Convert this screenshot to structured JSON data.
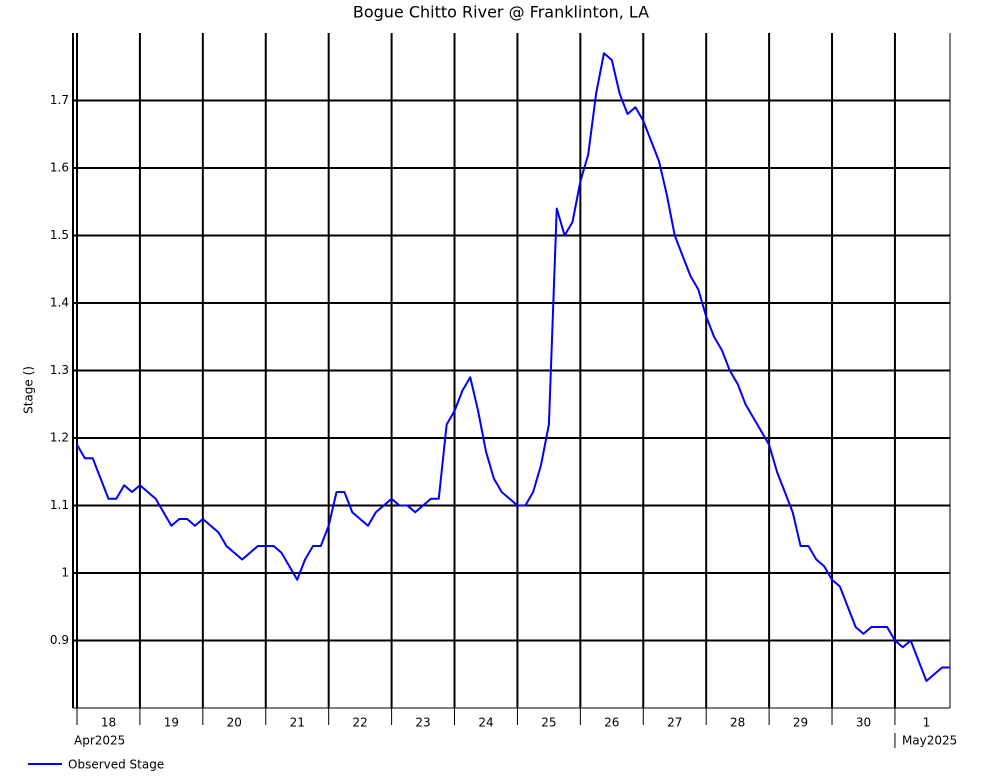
{
  "chart_data": {
    "type": "line",
    "title": "Bogue Chitto River @ Franklinton, LA",
    "y_label": "Stage ()",
    "x": [
      "2025-04-18T00:00",
      "2025-04-18T03:00",
      "2025-04-18T06:00",
      "2025-04-18T09:00",
      "2025-04-18T12:00",
      "2025-04-18T15:00",
      "2025-04-18T18:00",
      "2025-04-18T21:00",
      "2025-04-19T00:00",
      "2025-04-19T03:00",
      "2025-04-19T06:00",
      "2025-04-19T09:00",
      "2025-04-19T12:00",
      "2025-04-19T15:00",
      "2025-04-19T18:00",
      "2025-04-19T21:00",
      "2025-04-20T00:00",
      "2025-04-20T03:00",
      "2025-04-20T06:00",
      "2025-04-20T09:00",
      "2025-04-20T12:00",
      "2025-04-20T15:00",
      "2025-04-20T18:00",
      "2025-04-20T21:00",
      "2025-04-21T00:00",
      "2025-04-21T03:00",
      "2025-04-21T06:00",
      "2025-04-21T09:00",
      "2025-04-21T12:00",
      "2025-04-21T15:00",
      "2025-04-21T18:00",
      "2025-04-21T21:00",
      "2025-04-22T00:00",
      "2025-04-22T03:00",
      "2025-04-22T06:00",
      "2025-04-22T09:00",
      "2025-04-22T12:00",
      "2025-04-22T15:00",
      "2025-04-22T18:00",
      "2025-04-22T21:00",
      "2025-04-23T00:00",
      "2025-04-23T03:00",
      "2025-04-23T06:00",
      "2025-04-23T09:00",
      "2025-04-23T12:00",
      "2025-04-23T15:00",
      "2025-04-23T18:00",
      "2025-04-23T21:00",
      "2025-04-24T00:00",
      "2025-04-24T03:00",
      "2025-04-24T06:00",
      "2025-04-24T09:00",
      "2025-04-24T12:00",
      "2025-04-24T15:00",
      "2025-04-24T18:00",
      "2025-04-24T21:00",
      "2025-04-25T00:00",
      "2025-04-25T03:00",
      "2025-04-25T06:00",
      "2025-04-25T09:00",
      "2025-04-25T12:00",
      "2025-04-25T15:00",
      "2025-04-25T18:00",
      "2025-04-25T21:00",
      "2025-04-26T00:00",
      "2025-04-26T03:00",
      "2025-04-26T06:00",
      "2025-04-26T09:00",
      "2025-04-26T12:00",
      "2025-04-26T15:00",
      "2025-04-26T18:00",
      "2025-04-26T21:00",
      "2025-04-27T00:00",
      "2025-04-27T03:00",
      "2025-04-27T06:00",
      "2025-04-27T09:00",
      "2025-04-27T12:00",
      "2025-04-27T15:00",
      "2025-04-27T18:00",
      "2025-04-27T21:00",
      "2025-04-28T00:00",
      "2025-04-28T03:00",
      "2025-04-28T06:00",
      "2025-04-28T09:00",
      "2025-04-28T12:00",
      "2025-04-28T15:00",
      "2025-04-28T18:00",
      "2025-04-28T21:00",
      "2025-04-29T00:00",
      "2025-04-29T03:00",
      "2025-04-29T06:00",
      "2025-04-29T09:00",
      "2025-04-29T12:00",
      "2025-04-29T15:00",
      "2025-04-29T18:00",
      "2025-04-29T21:00",
      "2025-04-30T00:00",
      "2025-04-30T03:00",
      "2025-04-30T06:00",
      "2025-04-30T09:00",
      "2025-04-30T12:00",
      "2025-04-30T15:00",
      "2025-04-30T18:00",
      "2025-04-30T21:00",
      "2025-05-01T00:00",
      "2025-05-01T03:00",
      "2025-05-01T06:00",
      "2025-05-01T09:00",
      "2025-05-01T12:00",
      "2025-05-01T15:00",
      "2025-05-01T18:00",
      "2025-05-01T21:00"
    ],
    "series": [
      {
        "name": "Observed Stage",
        "color": "#0000ff",
        "values": [
          1.19,
          1.17,
          1.17,
          1.14,
          1.11,
          1.11,
          1.13,
          1.12,
          1.13,
          1.12,
          1.11,
          1.09,
          1.07,
          1.08,
          1.08,
          1.07,
          1.08,
          1.07,
          1.06,
          1.04,
          1.03,
          1.02,
          1.03,
          1.04,
          1.04,
          1.04,
          1.03,
          1.01,
          0.99,
          1.02,
          1.04,
          1.04,
          1.07,
          1.12,
          1.12,
          1.09,
          1.08,
          1.07,
          1.09,
          1.1,
          1.11,
          1.1,
          1.1,
          1.09,
          1.1,
          1.11,
          1.11,
          1.22,
          1.24,
          1.27,
          1.29,
          1.24,
          1.18,
          1.14,
          1.12,
          1.11,
          1.1,
          1.1,
          1.12,
          1.16,
          1.22,
          1.54,
          1.5,
          1.52,
          1.58,
          1.62,
          1.71,
          1.77,
          1.76,
          1.71,
          1.68,
          1.69,
          1.67,
          1.64,
          1.61,
          1.56,
          1.5,
          1.47,
          1.44,
          1.42,
          1.38,
          1.35,
          1.33,
          1.3,
          1.28,
          1.25,
          1.23,
          1.21,
          1.19,
          1.15,
          1.12,
          1.09,
          1.04,
          1.04,
          1.02,
          1.01,
          0.99,
          0.98,
          0.95,
          0.92,
          0.91,
          0.92,
          0.92,
          0.92,
          0.9,
          0.89,
          0.9,
          0.87,
          0.84,
          0.85,
          0.86,
          0.86
        ]
      }
    ],
    "xlim": [
      "2025-04-18T00:00",
      "2025-05-01T21:00"
    ],
    "xticks": [
      "2025-04-18T00:00",
      "2025-04-19T00:00",
      "2025-04-20T00:00",
      "2025-04-21T00:00",
      "2025-04-22T00:00",
      "2025-04-23T00:00",
      "2025-04-24T00:00",
      "2025-04-25T00:00",
      "2025-04-26T00:00",
      "2025-04-27T00:00",
      "2025-04-28T00:00",
      "2025-04-29T00:00",
      "2025-04-30T00:00",
      "2025-05-01T00:00"
    ],
    "xtick_labels": [
      {
        "value": "2025-04-18T12:00",
        "label": "18"
      },
      {
        "value": "2025-04-19T12:00",
        "label": "19"
      },
      {
        "value": "2025-04-20T12:00",
        "label": "20"
      },
      {
        "value": "2025-04-21T12:00",
        "label": "21"
      },
      {
        "value": "2025-04-22T12:00",
        "label": "22"
      },
      {
        "value": "2025-04-23T12:00",
        "label": "23"
      },
      {
        "value": "2025-04-24T12:00",
        "label": "24"
      },
      {
        "value": "2025-04-25T12:00",
        "label": "25"
      },
      {
        "value": "2025-04-26T12:00",
        "label": "26"
      },
      {
        "value": "2025-04-27T12:00",
        "label": "27"
      },
      {
        "value": "2025-04-28T12:00",
        "label": "28"
      },
      {
        "value": "2025-04-29T12:00",
        "label": "29"
      },
      {
        "value": "2025-04-30T12:00",
        "label": "30"
      },
      {
        "value": "2025-05-01T12:00",
        "label": "1"
      }
    ],
    "month_labels": [
      {
        "value": "2025-04-18T00:00",
        "label": "Apr2025"
      },
      {
        "value": "2025-05-01T00:00",
        "label": "May2025"
      }
    ],
    "ylim": [
      0.8,
      1.8
    ],
    "yticks": [
      0.9,
      1.0,
      1.1,
      1.2,
      1.3,
      1.4,
      1.5,
      1.6,
      1.7
    ],
    "grid": true,
    "legend": "bottom-left"
  }
}
